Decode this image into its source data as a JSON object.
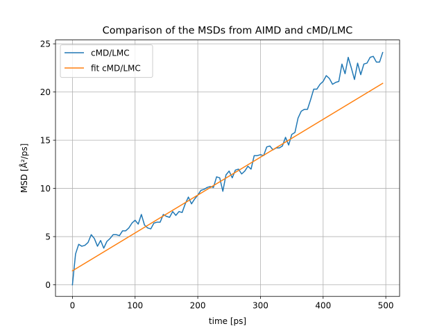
{
  "chart_data": {
    "type": "line",
    "title": "Comparison of the MSDs from AIMD and cMD/LMC",
    "xlabel": "time [ps]",
    "ylabel": "MSD  [Å²/ps]",
    "xlim": [
      -27,
      522
    ],
    "ylim": [
      -1.2,
      25.4
    ],
    "xticks": [
      0,
      100,
      200,
      300,
      400,
      500
    ],
    "yticks": [
      0,
      5,
      10,
      15,
      20,
      25
    ],
    "grid": true,
    "legend": "top-left",
    "series": [
      {
        "name": "cMD/LMC",
        "color": "#1f77b4",
        "x": [
          0,
          5,
          10,
          15,
          20,
          25,
          30,
          35,
          40,
          45,
          50,
          55,
          60,
          65,
          70,
          75,
          80,
          85,
          90,
          95,
          100,
          105,
          110,
          115,
          120,
          125,
          130,
          135,
          140,
          145,
          150,
          155,
          160,
          165,
          170,
          175,
          180,
          185,
          190,
          195,
          200,
          205,
          210,
          215,
          220,
          225,
          230,
          235,
          240,
          245,
          250,
          255,
          260,
          265,
          270,
          275,
          280,
          285,
          290,
          295,
          300,
          305,
          310,
          315,
          320,
          325,
          330,
          335,
          340,
          345,
          350,
          355,
          360,
          365,
          370,
          375,
          380,
          385,
          390,
          395,
          400,
          405,
          410,
          415,
          420,
          425,
          430,
          435,
          440,
          445,
          450,
          455,
          460,
          465,
          470,
          475,
          480,
          485,
          490,
          495
        ],
        "y": [
          0.0,
          3.2,
          4.2,
          4.0,
          4.1,
          4.4,
          5.2,
          4.8,
          4.0,
          4.6,
          3.8,
          4.5,
          4.8,
          5.2,
          5.2,
          5.1,
          5.6,
          5.6,
          5.9,
          6.4,
          6.7,
          6.3,
          7.3,
          6.2,
          5.9,
          5.8,
          6.4,
          6.5,
          6.5,
          7.3,
          7.1,
          7.0,
          7.6,
          7.2,
          7.6,
          7.5,
          8.4,
          9.1,
          8.4,
          8.9,
          9.3,
          9.8,
          9.9,
          10.1,
          10.2,
          10.1,
          11.2,
          11.1,
          9.7,
          11.4,
          11.8,
          11.1,
          11.9,
          12.0,
          11.5,
          11.8,
          12.3,
          12.0,
          13.4,
          13.4,
          13.5,
          13.4,
          14.3,
          14.4,
          14.0,
          14.2,
          14.2,
          14.4,
          15.3,
          14.5,
          15.6,
          15.8,
          17.3,
          18.0,
          18.2,
          18.2,
          19.2,
          20.3,
          20.3,
          20.8,
          21.1,
          21.7,
          21.4,
          20.8,
          21.0,
          21.1,
          22.9,
          21.9,
          23.6,
          22.5,
          21.3,
          23.0,
          21.8,
          22.9,
          23.0,
          23.6,
          23.7,
          23.1,
          23.1,
          24.1
        ]
      },
      {
        "name": "fit cMD/LMC",
        "color": "#ff7f0e",
        "x": [
          0,
          495
        ],
        "y": [
          1.45,
          20.9
        ]
      }
    ]
  }
}
